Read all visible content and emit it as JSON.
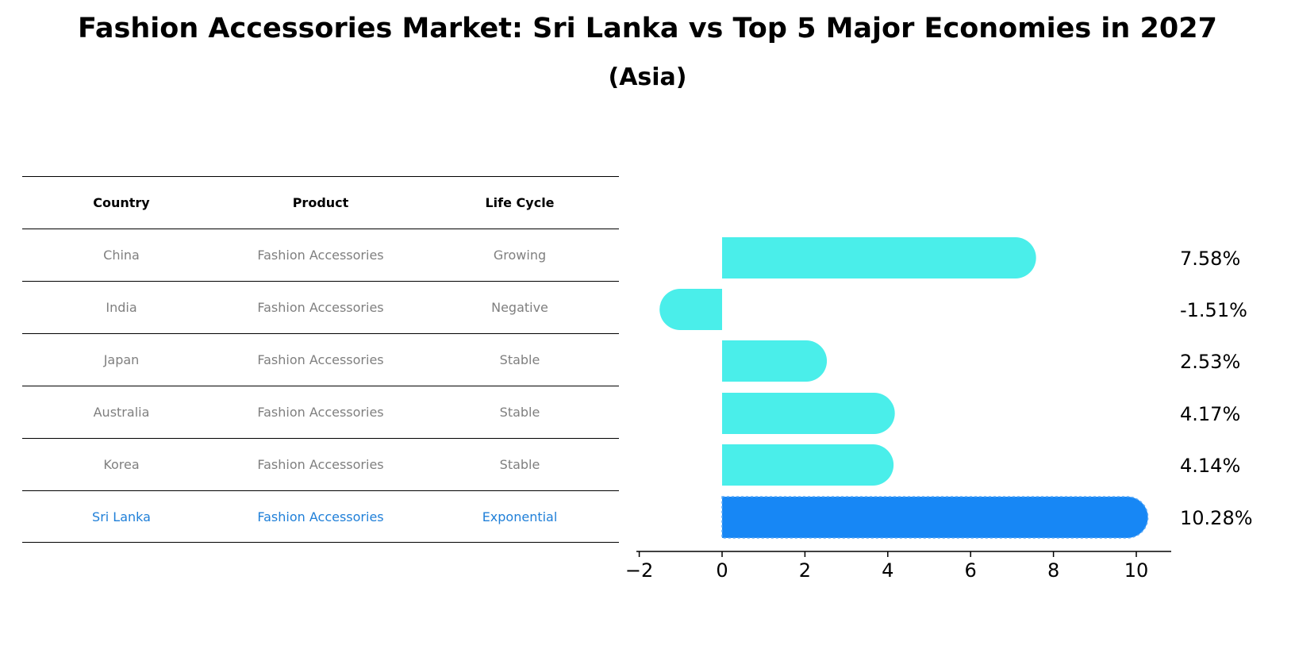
{
  "title": "Fashion Accessories Market: Sri Lanka vs Top 5 Major Economies in 2027",
  "subtitle": "(Asia)",
  "table": {
    "headers": [
      "Country",
      "Product",
      "Life Cycle"
    ],
    "rows": [
      {
        "country": "China",
        "product": "Fashion Accessories",
        "life_cycle": "Growing"
      },
      {
        "country": "India",
        "product": "Fashion Accessories",
        "life_cycle": "Negative"
      },
      {
        "country": "Japan",
        "product": "Fashion Accessories",
        "life_cycle": "Stable"
      },
      {
        "country": "Australia",
        "product": "Fashion Accessories",
        "life_cycle": "Stable"
      },
      {
        "country": "Korea",
        "product": "Fashion Accessories",
        "life_cycle": "Stable"
      },
      {
        "country": "Sri Lanka",
        "product": "Fashion Accessories",
        "life_cycle": "Exponential"
      }
    ],
    "highlight_row": 5
  },
  "chart_data": {
    "type": "bar",
    "orientation": "horizontal",
    "categories": [
      "China",
      "India",
      "Japan",
      "Australia",
      "Korea",
      "Sri Lanka"
    ],
    "values": [
      7.58,
      -1.51,
      2.53,
      4.17,
      4.14,
      10.28
    ],
    "value_labels": [
      "7.58%",
      "-1.51%",
      "2.53%",
      "4.17%",
      "4.14%",
      "10.28%"
    ],
    "xticks": [
      "−2",
      "0",
      "2",
      "4",
      "6",
      "8",
      "10"
    ],
    "xtick_values": [
      -2,
      0,
      2,
      4,
      6,
      8,
      10
    ],
    "xlim": [
      -2.1,
      10.9
    ],
    "colors": {
      "default": "#4aeeea",
      "highlight": "#1787f5"
    },
    "highlight_index": 5,
    "grid": false
  },
  "colors": {
    "header_text": "#000000",
    "row_text": "#7f7f7f",
    "highlight_text": "#1f7fd8"
  }
}
